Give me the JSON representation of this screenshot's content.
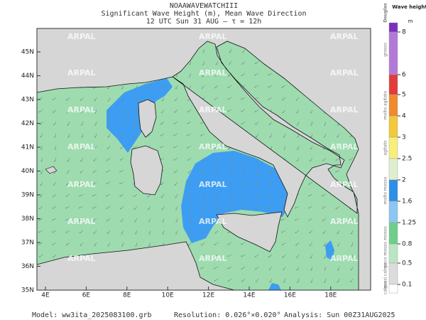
{
  "header": {
    "line1": "NOAAWAVEWATCHIII",
    "line2": "Significant Wave Height (m), Mean Wave Direction",
    "line3": "12 UTC Sun 31 AUG   —   τ = 12h"
  },
  "map": {
    "lat_labels": [
      "45N",
      "44N",
      "43N",
      "42N",
      "41N",
      "40N",
      "39N",
      "38N",
      "37N",
      "36N",
      "35N"
    ],
    "lon_labels": [
      "4E",
      "6E",
      "8E",
      "10E",
      "12E",
      "14E",
      "16E",
      "18E"
    ],
    "watermark": "ARPAL"
  },
  "legend": {
    "title": "Wave height",
    "unit": "m",
    "scale_name": "Douglas",
    "levels": [
      8,
      6,
      5,
      4,
      3,
      2.5,
      2,
      1.6,
      1.25,
      0.8,
      0.5,
      0.1
    ],
    "sea_states": [
      "grosso",
      "molto agitato",
      "agitato",
      "molto mosso",
      "mosso",
      "poco mosso",
      "quasi calmo",
      "calmo"
    ]
  },
  "footer": {
    "model": "Model:  ww3ita_2025083100.grb",
    "resolution": "Resolution: 0.026°×0.020°",
    "analysis": "Analysis: Sun 00Z31AUG2025"
  }
}
